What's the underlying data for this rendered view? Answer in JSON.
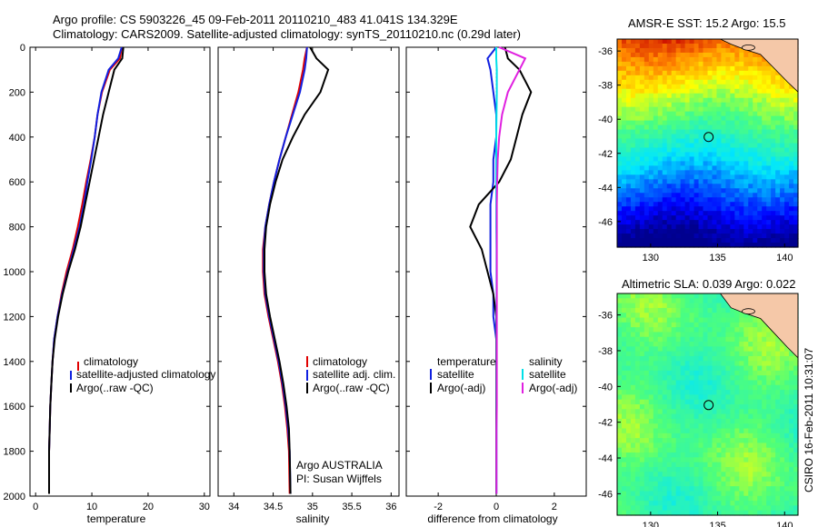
{
  "header": {
    "line1": "Argo profile: CS 5903226_45 09-Feb-2011 20110210_483 41.041S 134.329E",
    "line2": "Climatology: CARS2009. Satellite-adjusted climatology: synTS_20110210.nc (0.29d later)"
  },
  "colors": {
    "climatology": "#e00000",
    "satellite": "#1020e0",
    "argo": "#000000",
    "sat_sal": "#00e0e8",
    "argo_sal_adj": "#e020e0"
  },
  "chart_data": [
    {
      "type": "line",
      "name": "temperature",
      "xlabel": "temperature",
      "ylabel": "",
      "xlim": [
        -1,
        31
      ],
      "ylim": [
        2000,
        0
      ],
      "xticks": [
        0,
        10,
        20,
        30
      ],
      "yticks": [
        0,
        200,
        400,
        600,
        800,
        1000,
        1200,
        1400,
        1600,
        1800,
        2000
      ],
      "legend": {
        "position": "lower-right",
        "items": [
          "climatology",
          "satellite-adjusted climatology",
          "Argo(..raw -QC)"
        ]
      },
      "series": [
        {
          "name": "climatology",
          "color": "#e00000",
          "x": [
            15.3,
            15.0,
            13.2,
            11.8,
            11.0,
            10.5,
            9.8,
            9.0,
            8.3,
            7.5,
            6.6,
            5.5,
            4.6,
            3.9,
            3.3,
            3.0,
            2.8,
            2.6,
            2.5,
            2.4,
            2.4
          ],
          "y": [
            0,
            50,
            100,
            200,
            300,
            400,
            500,
            600,
            700,
            800,
            900,
            1000,
            1100,
            1200,
            1300,
            1400,
            1500,
            1600,
            1700,
            1800,
            1990
          ]
        },
        {
          "name": "satellite-adjusted climatology",
          "color": "#1020e0",
          "x": [
            15.3,
            14.7,
            13.0,
            11.7,
            11.0,
            10.5,
            9.9,
            9.2,
            8.6,
            7.8,
            6.8,
            5.7,
            4.7,
            3.9,
            3.3,
            3.0,
            2.8,
            2.6,
            2.5,
            2.4,
            2.4
          ],
          "y": [
            0,
            50,
            100,
            200,
            300,
            400,
            500,
            600,
            700,
            800,
            900,
            1000,
            1100,
            1200,
            1300,
            1400,
            1500,
            1600,
            1700,
            1800,
            1990
          ]
        },
        {
          "name": "Argo(..raw -QC)",
          "color": "#000000",
          "x": [
            15.6,
            15.4,
            14.0,
            13.0,
            12.0,
            11.2,
            10.4,
            9.6,
            8.8,
            8.0,
            7.0,
            5.8,
            4.8,
            4.0,
            3.4,
            3.0,
            2.8,
            2.6,
            2.5,
            2.4,
            2.4
          ],
          "y": [
            0,
            50,
            100,
            200,
            300,
            400,
            500,
            600,
            700,
            800,
            900,
            1000,
            1100,
            1200,
            1300,
            1400,
            1500,
            1600,
            1700,
            1800,
            1990
          ]
        }
      ]
    },
    {
      "type": "line",
      "name": "salinity",
      "xlabel": "salinity",
      "ylabel": "",
      "xlim": [
        33.8,
        36.1
      ],
      "ylim": [
        2000,
        0
      ],
      "xticks": [
        34,
        34.5,
        35,
        35.5,
        36
      ],
      "yticks": [
        0,
        200,
        400,
        600,
        800,
        1000,
        1200,
        1400,
        1600,
        1800,
        2000
      ],
      "legend": {
        "position": "lower-right",
        "items": [
          "climatology",
          "satellite adj. clim.",
          "Argo(..raw -QC)"
        ]
      },
      "annotation": {
        "line1": "Argo AUSTRALIA",
        "line2": "PI: Susan Wijffels"
      },
      "series": [
        {
          "name": "climatology",
          "color": "#e00000",
          "x": [
            34.93,
            34.9,
            34.88,
            34.82,
            34.74,
            34.66,
            34.58,
            34.51,
            34.45,
            34.4,
            34.37,
            34.37,
            34.39,
            34.44,
            34.5,
            34.56,
            34.61,
            34.65,
            34.68,
            34.7,
            34.71
          ],
          "y": [
            0,
            50,
            100,
            200,
            300,
            400,
            500,
            600,
            700,
            800,
            900,
            1000,
            1100,
            1200,
            1300,
            1400,
            1500,
            1600,
            1700,
            1800,
            1990
          ]
        },
        {
          "name": "satellite adj. clim.",
          "color": "#1020e0",
          "x": [
            34.93,
            34.92,
            34.9,
            34.84,
            34.75,
            34.66,
            34.58,
            34.51,
            34.45,
            34.4,
            34.38,
            34.38,
            34.4,
            34.45,
            34.51,
            34.57,
            34.62,
            34.66,
            34.69,
            34.71,
            34.72
          ],
          "y": [
            0,
            50,
            100,
            200,
            300,
            400,
            500,
            600,
            700,
            800,
            900,
            1000,
            1100,
            1200,
            1300,
            1400,
            1500,
            1600,
            1700,
            1800,
            1990
          ]
        },
        {
          "name": "Argo(..raw -QC)",
          "color": "#000000",
          "x": [
            34.97,
            35.05,
            35.2,
            35.1,
            34.9,
            34.75,
            34.62,
            34.53,
            34.46,
            34.41,
            34.39,
            34.39,
            34.41,
            34.46,
            34.52,
            34.58,
            34.63,
            34.67,
            34.7,
            34.71,
            34.72
          ],
          "y": [
            0,
            50,
            100,
            200,
            300,
            400,
            500,
            600,
            700,
            800,
            900,
            1000,
            1100,
            1200,
            1300,
            1400,
            1500,
            1600,
            1700,
            1800,
            1990
          ]
        }
      ]
    },
    {
      "type": "line",
      "name": "difference",
      "xlabel": "difference from climatology",
      "ylabel": "",
      "xlim": [
        -3.1,
        3.1
      ],
      "ylim": [
        2000,
        0
      ],
      "xticks": [
        -2,
        0,
        2
      ],
      "yticks": [
        0,
        200,
        400,
        600,
        800,
        1000,
        1200,
        1400,
        1600,
        1800,
        2000
      ],
      "legend": {
        "position": "lower-center",
        "temperature_header": "temperature",
        "salinity_header": "salinity",
        "temperature_items": [
          "satellite",
          "Argo(-adj)"
        ],
        "salinity_items": [
          "satellite",
          "Argo(-adj)"
        ]
      },
      "series": [
        {
          "name": "temperature satellite",
          "color": "#1020e0",
          "x": [
            0.0,
            -0.3,
            -0.2,
            -0.1,
            0.0,
            0.0,
            -0.1,
            -0.1,
            -0.2,
            -0.2,
            -0.2,
            -0.2,
            -0.1,
            -0.1,
            0.0,
            0.0,
            0.0,
            0.0,
            0.0,
            0.0,
            0.0
          ],
          "y": [
            0,
            50,
            100,
            200,
            300,
            400,
            500,
            600,
            700,
            800,
            900,
            1000,
            1100,
            1200,
            1300,
            1400,
            1500,
            1600,
            1700,
            1800,
            1990
          ]
        },
        {
          "name": "temperature Argo(-adj)",
          "color": "#000000",
          "x": [
            0.3,
            0.4,
            0.8,
            1.2,
            0.9,
            0.7,
            0.5,
            0.1,
            -0.6,
            -0.9,
            -0.5,
            -0.3,
            -0.1,
            0.0,
            0.0,
            0.0,
            0.0,
            0.0,
            0.0,
            0.0,
            0.0
          ],
          "y": [
            0,
            50,
            100,
            200,
            300,
            400,
            500,
            600,
            700,
            800,
            900,
            1000,
            1100,
            1200,
            1300,
            1400,
            1500,
            1600,
            1700,
            1800,
            1990
          ]
        },
        {
          "name": "salinity satellite",
          "color": "#00e0e8",
          "x": [
            0.0,
            0.0,
            0.02,
            0.02,
            0.01,
            0.0,
            0.0,
            0.0,
            0.0,
            0.0,
            0.01,
            0.01,
            0.01,
            0.01,
            0.01,
            0.01,
            0.01,
            0.01,
            0.01,
            0.01,
            0.01
          ],
          "y": [
            0,
            50,
            100,
            200,
            300,
            400,
            500,
            600,
            700,
            800,
            900,
            1000,
            1100,
            1200,
            1300,
            1400,
            1500,
            1600,
            1700,
            1800,
            1990
          ]
        },
        {
          "name": "salinity Argo(-adj)",
          "color": "#e020e0",
          "x": [
            0.1,
            1.0,
            0.8,
            0.4,
            0.2,
            0.1,
            0.05,
            0.03,
            0.02,
            0.02,
            0.02,
            0.02,
            0.02,
            0.02,
            0.02,
            0.02,
            0.02,
            0.02,
            0.01,
            0.01,
            0.01
          ],
          "y": [
            0,
            50,
            100,
            200,
            300,
            400,
            500,
            600,
            700,
            800,
            900,
            1000,
            1100,
            1200,
            1300,
            1400,
            1500,
            1600,
            1700,
            1800,
            1990
          ]
        }
      ]
    },
    {
      "type": "heatmap",
      "name": "sst_map",
      "title": "AMSR-E SST: 15.2 Argo: 15.5",
      "xlim": [
        127.5,
        141
      ],
      "ylim": [
        -47.5,
        -35.3
      ],
      "xticks": [
        130,
        135,
        140
      ],
      "yticks": [
        -36,
        -38,
        -40,
        -42,
        -44,
        -46
      ],
      "marker": {
        "lon": 134.329,
        "lat": -41.041
      }
    },
    {
      "type": "heatmap",
      "name": "sla_map",
      "title": "Altimetric SLA: 0.039 Argo: 0.022",
      "xlim": [
        127.5,
        141
      ],
      "ylim": [
        -47.2,
        -34.8
      ],
      "xticks": [
        130,
        135,
        140
      ],
      "yticks": [
        -36,
        -38,
        -40,
        -42,
        -44,
        -46
      ],
      "marker": {
        "lon": 134.329,
        "lat": -41.041
      }
    }
  ],
  "footer": {
    "stamp": "CSIRO 16-Feb-2011 10:31:07"
  }
}
